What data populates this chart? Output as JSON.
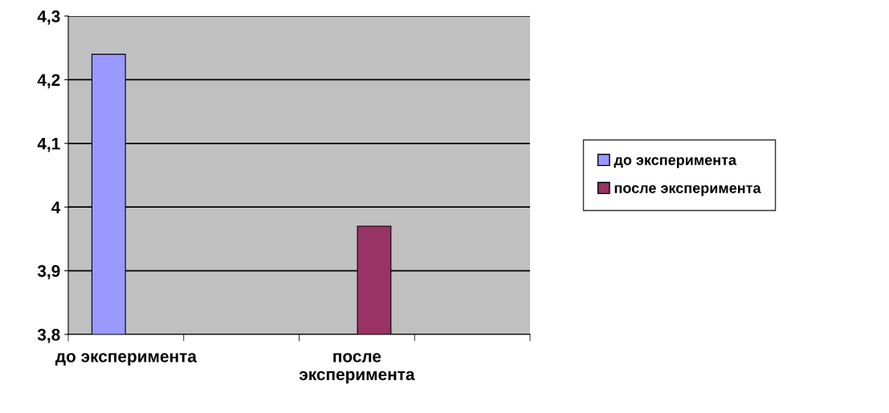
{
  "chart_data": {
    "type": "bar",
    "categories": [
      "до эксперимента",
      null,
      "после эксперимента",
      null
    ],
    "series": [
      {
        "name": "до эксперимента",
        "color": "#9999ff",
        "values": [
          4.24,
          null,
          null,
          null
        ]
      },
      {
        "name": "после эксперимента",
        "color": "#993366",
        "values": [
          null,
          null,
          3.97,
          null
        ]
      }
    ],
    "ylim": [
      3.8,
      4.3
    ],
    "yticks": [
      {
        "value": 3.8,
        "label": "3,8"
      },
      {
        "value": 3.9,
        "label": "3,9"
      },
      {
        "value": 4.0,
        "label": "4"
      },
      {
        "value": 4.1,
        "label": "4,1"
      },
      {
        "value": 4.2,
        "label": "4,2"
      },
      {
        "value": 4.3,
        "label": "4,3"
      }
    ],
    "grid": "y",
    "legend": "right"
  }
}
